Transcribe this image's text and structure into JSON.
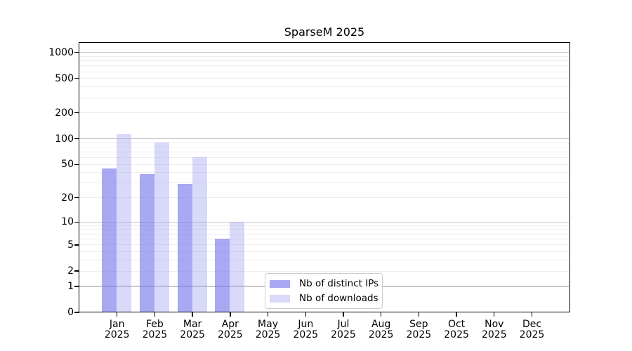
{
  "title": "SparseM 2025",
  "chart_data": {
    "type": "bar",
    "title": "SparseM 2025",
    "categories": [
      {
        "month": "Jan",
        "year": "2025"
      },
      {
        "month": "Feb",
        "year": "2025"
      },
      {
        "month": "Mar",
        "year": "2025"
      },
      {
        "month": "Apr",
        "year": "2025"
      },
      {
        "month": "May",
        "year": "2025"
      },
      {
        "month": "Jun",
        "year": "2025"
      },
      {
        "month": "Jul",
        "year": "2025"
      },
      {
        "month": "Aug",
        "year": "2025"
      },
      {
        "month": "Sep",
        "year": "2025"
      },
      {
        "month": "Oct",
        "year": "2025"
      },
      {
        "month": "Nov",
        "year": "2025"
      },
      {
        "month": "Dec",
        "year": "2025"
      }
    ],
    "series": [
      {
        "name": "Nb of distinct IPs",
        "color": "rgba(123,123,237,0.66)",
        "values": [
          44,
          38,
          29,
          6,
          0,
          0,
          0,
          0,
          0,
          0,
          0,
          0
        ]
      },
      {
        "name": "Nb of downloads",
        "color": "rgba(160,160,240,0.40)",
        "values": [
          113,
          90,
          60,
          10,
          0,
          0,
          0,
          0,
          0,
          0,
          0,
          0
        ]
      }
    ],
    "y_axis": {
      "scale": "log1p",
      "tick_values": [
        0,
        1,
        2,
        5,
        10,
        20,
        50,
        100,
        200,
        500,
        1000
      ],
      "major_grid_values": [
        1,
        10,
        100,
        1000
      ],
      "minor_grid_values": [
        2,
        3,
        4,
        5,
        6,
        7,
        8,
        9,
        20,
        30,
        40,
        50,
        60,
        70,
        80,
        90,
        200,
        300,
        400,
        500,
        600,
        700,
        800,
        900
      ],
      "range": [
        0,
        1300
      ]
    },
    "legend": {
      "position": "bottom-center",
      "items": [
        "Nb of distinct IPs",
        "Nb of downloads"
      ]
    },
    "grid": true,
    "styles": {
      "major_grid_color": "#c8c8c8",
      "minor_grid_color": "#ededed",
      "axis_color": "#000000",
      "background": "#ffffff",
      "legend_border": "#cccccc"
    }
  }
}
